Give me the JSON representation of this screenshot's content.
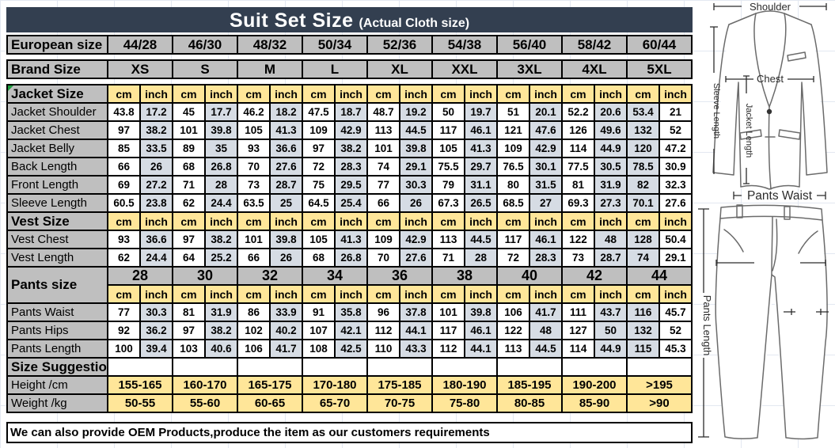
{
  "title": {
    "main": "Suit Set Size",
    "sub": "(Actual Cloth size)"
  },
  "units": {
    "cm": "cm",
    "inch": "inch"
  },
  "header_rows": [
    {
      "label": "European size",
      "values": [
        "44/28",
        "46/30",
        "48/32",
        "50/34",
        "52/36",
        "54/38",
        "56/40",
        "58/42",
        "60/44"
      ]
    },
    {
      "label": "Brand Size",
      "values": [
        "XS",
        "S",
        "M",
        "L",
        "XL",
        "XXL",
        "3XL",
        "4XL",
        "5XL"
      ]
    }
  ],
  "sections": [
    {
      "label": "Jacket Size",
      "type": "cm-inch",
      "rows": [
        {
          "label": "Jacket Shoulder",
          "values": [
            [
              "43.8",
              "17.2"
            ],
            [
              "45",
              "17.7"
            ],
            [
              "46.2",
              "18.2"
            ],
            [
              "47.5",
              "18.7"
            ],
            [
              "48.7",
              "19.2"
            ],
            [
              "50",
              "19.7"
            ],
            [
              "51",
              "20.1"
            ],
            [
              "52.2",
              "20.6"
            ],
            [
              "53.4",
              "21"
            ]
          ]
        },
        {
          "label": "Jacket Chest",
          "values": [
            [
              "97",
              "38.2"
            ],
            [
              "101",
              "39.8"
            ],
            [
              "105",
              "41.3"
            ],
            [
              "109",
              "42.9"
            ],
            [
              "113",
              "44.5"
            ],
            [
              "117",
              "46.1"
            ],
            [
              "121",
              "47.6"
            ],
            [
              "126",
              "49.6"
            ],
            [
              "132",
              "52"
            ]
          ]
        },
        {
          "label": "Jacket Belly",
          "values": [
            [
              "85",
              "33.5"
            ],
            [
              "89",
              "35"
            ],
            [
              "93",
              "36.6"
            ],
            [
              "97",
              "38.2"
            ],
            [
              "101",
              "39.8"
            ],
            [
              "105",
              "41.3"
            ],
            [
              "109",
              "42.9"
            ],
            [
              "114",
              "44.9"
            ],
            [
              "120",
              "47.2"
            ]
          ]
        },
        {
          "label": "Back Length",
          "values": [
            [
              "66",
              "26"
            ],
            [
              "68",
              "26.8"
            ],
            [
              "70",
              "27.6"
            ],
            [
              "72",
              "28.3"
            ],
            [
              "74",
              "29.1"
            ],
            [
              "75.5",
              "29.7"
            ],
            [
              "76.5",
              "30.1"
            ],
            [
              "77.5",
              "30.5"
            ],
            [
              "78.5",
              "30.9"
            ]
          ]
        },
        {
          "label": "Front Length",
          "values": [
            [
              "69",
              "27.2"
            ],
            [
              "71",
              "28"
            ],
            [
              "73",
              "28.7"
            ],
            [
              "75",
              "29.5"
            ],
            [
              "77",
              "30.3"
            ],
            [
              "79",
              "31.1"
            ],
            [
              "80",
              "31.5"
            ],
            [
              "81",
              "31.9"
            ],
            [
              "82",
              "32.3"
            ]
          ]
        },
        {
          "label": "Sleeve Length",
          "values": [
            [
              "60.5",
              "23.8"
            ],
            [
              "62",
              "24.4"
            ],
            [
              "63.5",
              "25"
            ],
            [
              "64.5",
              "25.4"
            ],
            [
              "66",
              "26"
            ],
            [
              "67.3",
              "26.5"
            ],
            [
              "68.5",
              "27"
            ],
            [
              "69.3",
              "27.3"
            ],
            [
              "70.1",
              "27.6"
            ]
          ]
        }
      ]
    },
    {
      "label": "Vest Size",
      "type": "cm-inch",
      "rows": [
        {
          "label": "Vest Chest",
          "values": [
            [
              "93",
              "36.6"
            ],
            [
              "97",
              "38.2"
            ],
            [
              "101",
              "39.8"
            ],
            [
              "105",
              "41.3"
            ],
            [
              "109",
              "42.9"
            ],
            [
              "113",
              "44.5"
            ],
            [
              "117",
              "46.1"
            ],
            [
              "122",
              "48"
            ],
            [
              "128",
              "50.4"
            ]
          ]
        },
        {
          "label": "Vest Length",
          "values": [
            [
              "62",
              "24.4"
            ],
            [
              "64",
              "25.2"
            ],
            [
              "66",
              "26"
            ],
            [
              "68",
              "26.8"
            ],
            [
              "70",
              "27.6"
            ],
            [
              "71",
              "28"
            ],
            [
              "72",
              "28.3"
            ],
            [
              "73",
              "28.7"
            ],
            [
              "74",
              "29.1"
            ]
          ]
        }
      ]
    },
    {
      "label": "Pants size",
      "type": "pants",
      "sizes": [
        "28",
        "30",
        "32",
        "34",
        "36",
        "38",
        "40",
        "42",
        "44"
      ],
      "rows": [
        {
          "label": "Pants Waist",
          "values": [
            [
              "77",
              "30.3"
            ],
            [
              "81",
              "31.9"
            ],
            [
              "86",
              "33.9"
            ],
            [
              "91",
              "35.8"
            ],
            [
              "96",
              "37.8"
            ],
            [
              "101",
              "39.8"
            ],
            [
              "106",
              "41.7"
            ],
            [
              "111",
              "43.7"
            ],
            [
              "116",
              "45.7"
            ]
          ]
        },
        {
          "label": "Pants Hips",
          "values": [
            [
              "92",
              "36.2"
            ],
            [
              "97",
              "38.2"
            ],
            [
              "102",
              "40.2"
            ],
            [
              "107",
              "42.1"
            ],
            [
              "112",
              "44.1"
            ],
            [
              "117",
              "46.1"
            ],
            [
              "122",
              "48"
            ],
            [
              "127",
              "50"
            ],
            [
              "132",
              "52"
            ]
          ]
        },
        {
          "label": "Pants Length",
          "values": [
            [
              "100",
              "39.4"
            ],
            [
              "103",
              "40.6"
            ],
            [
              "106",
              "41.7"
            ],
            [
              "108",
              "42.5"
            ],
            [
              "110",
              "43.3"
            ],
            [
              "112",
              "44.1"
            ],
            [
              "113",
              "44.5"
            ],
            [
              "114",
              "44.9"
            ],
            [
              "115",
              "45.3"
            ]
          ]
        }
      ]
    },
    {
      "label": "Size Suggestion",
      "type": "suggestion",
      "rows": [
        {
          "label": "Height /cm",
          "values": [
            "155-165",
            "160-170",
            "165-175",
            "170-180",
            "175-185",
            "180-190",
            "185-195",
            "190-200",
            ">195"
          ]
        },
        {
          "label": "Weight /kg",
          "values": [
            "50-55",
            "55-60",
            "60-65",
            "65-70",
            "70-75",
            "75-80",
            "80-85",
            "85-90",
            ">90"
          ]
        }
      ]
    }
  ],
  "footer": "We can also provide OEM Products,produce the item as our customers requirements",
  "diagram": {
    "shoulder": "Shoulder",
    "chest": "Chest",
    "jacket_length": "Jacket Length",
    "sleeve_length": "Sleeve Length",
    "pants_waist": "Pants Waist",
    "pants_length": "Pants Length"
  },
  "colors": {
    "header_bg": "#333F50",
    "label_bg": "#BFBFBF",
    "unit_bg": "#FFE699",
    "inch_bg": "#D6DCE4",
    "border": "#000000",
    "error_indicator": "#1E9E3E"
  }
}
